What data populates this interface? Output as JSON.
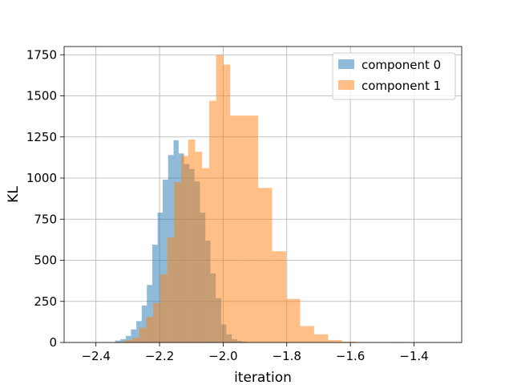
{
  "chart_data": {
    "type": "bar",
    "subtype": "overlapping histogram",
    "xlabel": "iteration",
    "ylabel": "KL",
    "xlim": [
      -2.5,
      -1.25
    ],
    "ylim": [
      0,
      1800
    ],
    "xticks": [
      -2.4,
      -2.2,
      -2.0,
      -1.8,
      -1.6,
      -1.4
    ],
    "xtick_labels": [
      "−2.4",
      "−2.2",
      "−2.0",
      "−1.8",
      "−1.6",
      "−1.4"
    ],
    "yticks": [
      0,
      250,
      500,
      750,
      1000,
      1250,
      1500,
      1750
    ],
    "ytick_labels": [
      "0",
      "250",
      "500",
      "750",
      "1000",
      "1250",
      "1500",
      "1750"
    ],
    "grid": true,
    "legend_position": "top-right",
    "series": [
      {
        "name": "component 0",
        "color": "#1f77b4",
        "alpha": 0.5,
        "bins": [
          {
            "x0": -2.34,
            "x1": -2.323,
            "count": 12
          },
          {
            "x0": -2.323,
            "x1": -2.306,
            "count": 20
          },
          {
            "x0": -2.306,
            "x1": -2.29,
            "count": 40
          },
          {
            "x0": -2.29,
            "x1": -2.273,
            "count": 80
          },
          {
            "x0": -2.273,
            "x1": -2.256,
            "count": 130
          },
          {
            "x0": -2.256,
            "x1": -2.24,
            "count": 225
          },
          {
            "x0": -2.24,
            "x1": -2.223,
            "count": 350
          },
          {
            "x0": -2.223,
            "x1": -2.206,
            "count": 595
          },
          {
            "x0": -2.206,
            "x1": -2.19,
            "count": 790
          },
          {
            "x0": -2.19,
            "x1": -2.173,
            "count": 990
          },
          {
            "x0": -2.173,
            "x1": -2.156,
            "count": 1140
          },
          {
            "x0": -2.156,
            "x1": -2.14,
            "count": 1230
          },
          {
            "x0": -2.14,
            "x1": -2.123,
            "count": 1150
          },
          {
            "x0": -2.123,
            "x1": -2.106,
            "count": 1085
          },
          {
            "x0": -2.106,
            "x1": -2.09,
            "count": 1055
          },
          {
            "x0": -2.09,
            "x1": -2.073,
            "count": 980
          },
          {
            "x0": -2.073,
            "x1": -2.056,
            "count": 790
          },
          {
            "x0": -2.056,
            "x1": -2.04,
            "count": 620
          },
          {
            "x0": -2.04,
            "x1": -2.023,
            "count": 420
          },
          {
            "x0": -2.023,
            "x1": -2.006,
            "count": 270
          },
          {
            "x0": -2.006,
            "x1": -1.99,
            "count": 110
          },
          {
            "x0": -1.99,
            "x1": -1.973,
            "count": 50
          },
          {
            "x0": -1.973,
            "x1": -1.956,
            "count": 20
          },
          {
            "x0": -1.956,
            "x1": -1.94,
            "count": 10
          },
          {
            "x0": -1.94,
            "x1": -1.923,
            "count": 5
          }
        ]
      },
      {
        "name": "component 1",
        "color": "#ff7f0e",
        "alpha": 0.5,
        "bins": [
          {
            "x0": -2.33,
            "x1": -2.308,
            "count": 5
          },
          {
            "x0": -2.308,
            "x1": -2.286,
            "count": 15
          },
          {
            "x0": -2.286,
            "x1": -2.264,
            "count": 30
          },
          {
            "x0": -2.264,
            "x1": -2.242,
            "count": 90
          },
          {
            "x0": -2.242,
            "x1": -2.22,
            "count": 155
          },
          {
            "x0": -2.22,
            "x1": -2.198,
            "count": 240
          },
          {
            "x0": -2.198,
            "x1": -2.176,
            "count": 415
          },
          {
            "x0": -2.176,
            "x1": -2.154,
            "count": 640
          },
          {
            "x0": -2.154,
            "x1": -2.132,
            "count": 975
          },
          {
            "x0": -2.132,
            "x1": -2.11,
            "count": 1135
          },
          {
            "x0": -2.11,
            "x1": -2.088,
            "count": 1235
          },
          {
            "x0": -2.088,
            "x1": -2.066,
            "count": 1160
          },
          {
            "x0": -2.066,
            "x1": -2.044,
            "count": 1060
          },
          {
            "x0": -2.044,
            "x1": -2.022,
            "count": 1470
          },
          {
            "x0": -2.022,
            "x1": -2.0,
            "count": 1748
          },
          {
            "x0": -2.0,
            "x1": -1.978,
            "count": 1690
          },
          {
            "x0": -1.978,
            "x1": -1.956,
            "count": 1380
          },
          {
            "x0": -1.956,
            "x1": -1.934,
            "count": 1380
          },
          {
            "x0": -1.934,
            "x1": -1.912,
            "count": 1380
          },
          {
            "x0": -1.912,
            "x1": -1.89,
            "count": 1380
          },
          {
            "x0": -1.89,
            "x1": -1.868,
            "count": 940
          },
          {
            "x0": -1.868,
            "x1": -1.846,
            "count": 940
          },
          {
            "x0": -1.846,
            "x1": -1.824,
            "count": 555
          },
          {
            "x0": -1.824,
            "x1": -1.802,
            "count": 555
          },
          {
            "x0": -1.802,
            "x1": -1.78,
            "count": 265
          },
          {
            "x0": -1.78,
            "x1": -1.758,
            "count": 265
          },
          {
            "x0": -1.758,
            "x1": -1.736,
            "count": 100
          },
          {
            "x0": -1.736,
            "x1": -1.714,
            "count": 100
          },
          {
            "x0": -1.714,
            "x1": -1.692,
            "count": 50
          },
          {
            "x0": -1.692,
            "x1": -1.67,
            "count": 50
          },
          {
            "x0": -1.67,
            "x1": -1.648,
            "count": 15
          },
          {
            "x0": -1.648,
            "x1": -1.626,
            "count": 15
          },
          {
            "x0": -1.626,
            "x1": -1.604,
            "count": 5
          },
          {
            "x0": -1.604,
            "x1": -1.582,
            "count": 5
          },
          {
            "x0": -1.472,
            "x1": -1.45,
            "count": 3
          },
          {
            "x0": -1.45,
            "x1": -1.428,
            "count": 3
          }
        ]
      }
    ]
  }
}
